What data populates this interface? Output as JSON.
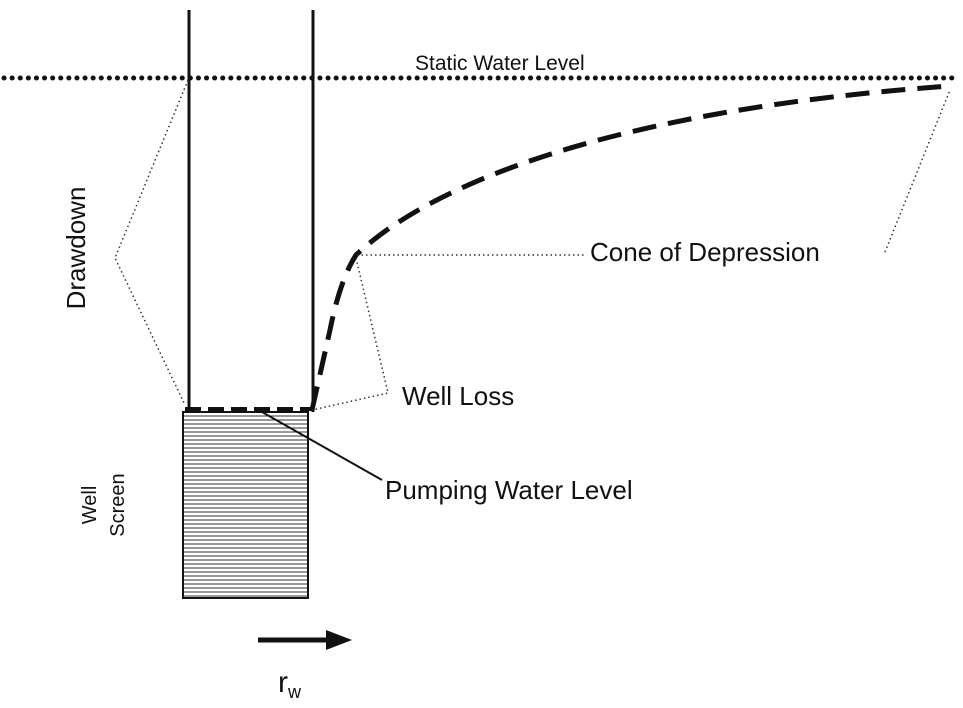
{
  "labels": {
    "static_water_level": "Static Water Level",
    "drawdown": "Drawdown",
    "cone_of_depression": "Cone of Depression",
    "well_loss": "Well Loss",
    "pumping_water_level": "Pumping Water Level",
    "well_screen": [
      "Well",
      "Screen"
    ],
    "radius": {
      "symbol": "r",
      "subscript": "w"
    }
  }
}
